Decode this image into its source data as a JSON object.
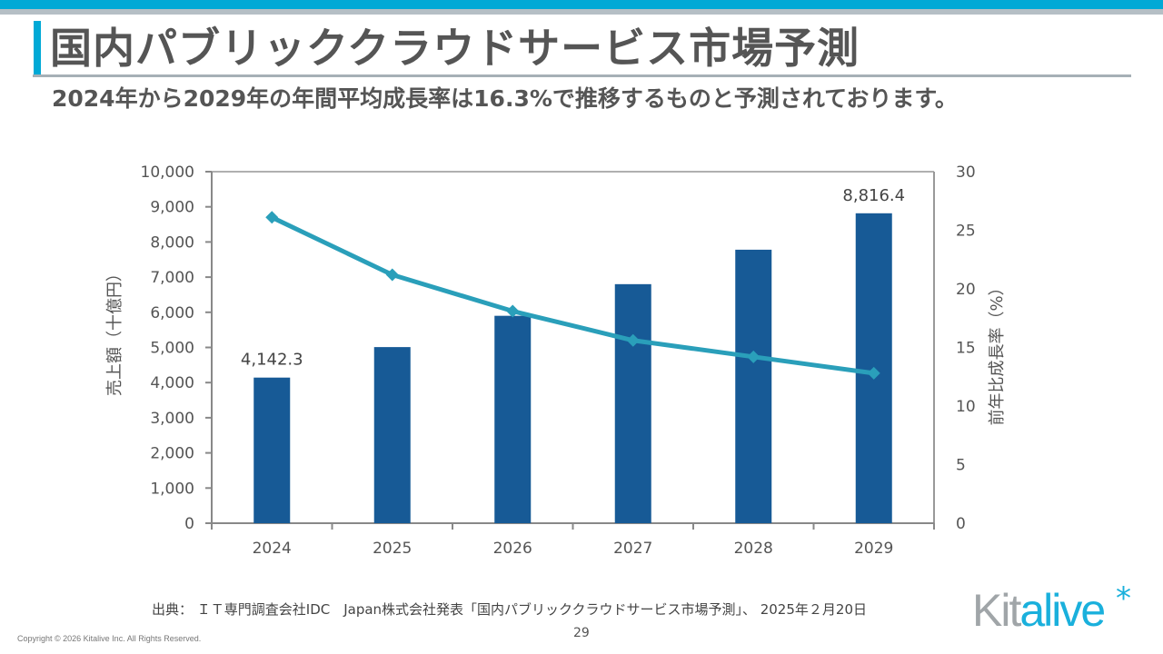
{
  "slide": {
    "title": "国内パブリッククラウドサービス市場予測",
    "subtitle": "2024年から2029年の年間平均成長率は16.3%で推移するものと予測されております。",
    "source": "出典： ＩＴ専門調査会社IDC　Japan株式会社発表「国内パブリッククラウドサービス市場予測」、 2025年２月20日",
    "page_number": "29",
    "copyright": "Copyright © 2026 Kitalive Inc. All Rights Reserved.",
    "logo": {
      "part1": "Kit",
      "part2": "alive",
      "mark": "*"
    }
  },
  "colors": {
    "accent": "#00a9d6",
    "bar": "#175a96",
    "line": "#2a9fba",
    "text": "#555555",
    "axis": "#888888"
  },
  "chart_data": {
    "type": "bar",
    "title": "",
    "categories": [
      "2024",
      "2025",
      "2026",
      "2027",
      "2028",
      "2029"
    ],
    "series": [
      {
        "name": "売上額（十億円）",
        "type": "bar",
        "axis": "left",
        "values": [
          4142.3,
          5010,
          5900,
          6800,
          7780,
          8816.4
        ]
      },
      {
        "name": "前年比成長率（%）",
        "type": "line",
        "axis": "right",
        "values": [
          26.1,
          21.2,
          18.1,
          15.6,
          14.2,
          12.8
        ]
      }
    ],
    "data_labels": [
      {
        "category": "2024",
        "text": "4,142.3"
      },
      {
        "category": "2029",
        "text": "8,816.4"
      }
    ],
    "ylabel": "売上額（十億円）",
    "y2label": "前年比成長率（%）",
    "ylim": [
      0,
      10000
    ],
    "y2lim": [
      0,
      30
    ],
    "yticks": [
      "0",
      "1,000",
      "2,000",
      "3,000",
      "4,000",
      "5,000",
      "6,000",
      "7,000",
      "8,000",
      "9,000",
      "10,000"
    ],
    "y2ticks": [
      "0",
      "5",
      "10",
      "15",
      "20",
      "25",
      "30"
    ],
    "grid": false,
    "legend": "none"
  }
}
